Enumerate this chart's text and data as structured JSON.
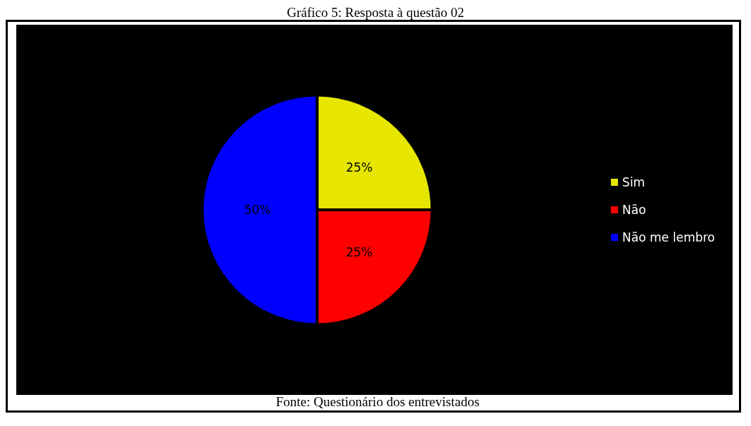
{
  "chart_data": {
    "type": "pie",
    "title": "Gráfico 5: Resposta à questão 02",
    "categories": [
      "Sim",
      "Não",
      "Não me lembro"
    ],
    "values": [
      25,
      25,
      50
    ],
    "colors": [
      "#e6e600",
      "#ff0000",
      "#0000ff"
    ],
    "value_labels": [
      "25%",
      "25%",
      "50%"
    ],
    "legend": "right",
    "annotations": [
      "Fonte: Questionário dos entrevistados"
    ]
  }
}
